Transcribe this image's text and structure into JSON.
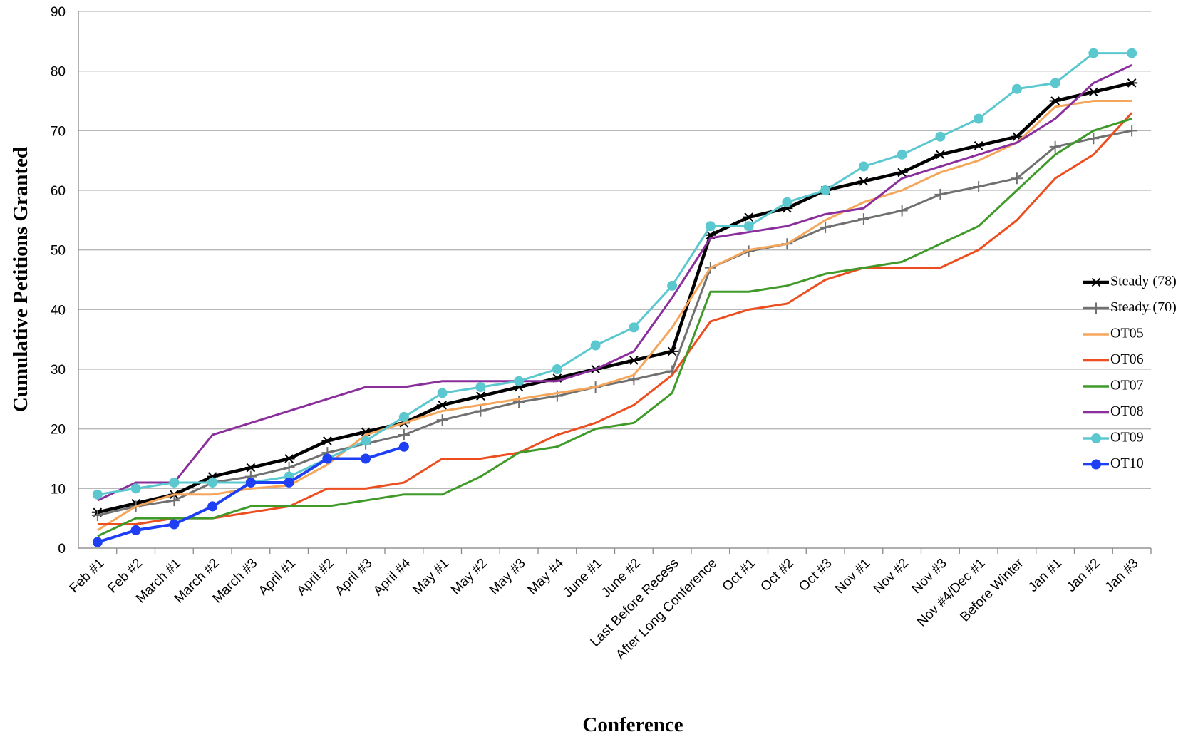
{
  "chart_data": {
    "type": "line",
    "xlabel": "Conference",
    "ylabel": "Cumulative Petitions Granted",
    "categories": [
      "Feb #1",
      "Feb #2",
      "March #1",
      "March #2",
      "March #3",
      "April #1",
      "April #2",
      "April #3",
      "April #4",
      "May #1",
      "May #2",
      "May #3",
      "May #4",
      "June #1",
      "June #2",
      "Last Before Recess",
      "After Long Conference",
      "Oct #1",
      "Oct #2",
      "Oct #3",
      "Nov #1",
      "Nov #2",
      "Nov #3",
      "Nov #4/Dec #1",
      "Before Winter",
      "Jan #1",
      "Jan #2",
      "Jan #3"
    ],
    "ylim": [
      0,
      90
    ],
    "yticks": [
      0,
      10,
      20,
      30,
      40,
      50,
      60,
      70,
      80,
      90
    ],
    "grid": true,
    "legend": "right",
    "series": [
      {
        "name": "Steady (78)",
        "color": "#000000",
        "marker": "star",
        "values": [
          6,
          7.5,
          9,
          12,
          13.5,
          15,
          18,
          19.5,
          21,
          24,
          25.5,
          27,
          28.5,
          30,
          31.5,
          33,
          52.5,
          55.5,
          57,
          60,
          61.5,
          63,
          66,
          67.5,
          69,
          75,
          76.5,
          78
        ]
      },
      {
        "name": "Steady (70)",
        "color": "#707070",
        "marker": "plus",
        "values": [
          5.5,
          7,
          8,
          11,
          12,
          13.5,
          16,
          17.5,
          19,
          21.5,
          23,
          24.5,
          25.5,
          27,
          28.3,
          29.7,
          47,
          49.8,
          51,
          53.8,
          55.2,
          56.6,
          59.3,
          60.6,
          62,
          67.3,
          68.7,
          70
        ]
      },
      {
        "name": "OT05",
        "color": "#f5a65b",
        "values": [
          3,
          7,
          9,
          9,
          10,
          10.5,
          14,
          19,
          21,
          23,
          24,
          25,
          26,
          27,
          29,
          37,
          47,
          50,
          51,
          55,
          58,
          60,
          63,
          65,
          68,
          74,
          75,
          75
        ]
      },
      {
        "name": "OT06",
        "color": "#ec4e20",
        "values": [
          4,
          4,
          5,
          5,
          6,
          7,
          10,
          10,
          11,
          15,
          15,
          16,
          19,
          21,
          24,
          29,
          38,
          40,
          41,
          45,
          47,
          47,
          47,
          50,
          55,
          62,
          66,
          73
        ]
      },
      {
        "name": "OT07",
        "color": "#3f9a2a",
        "values": [
          2,
          5,
          5,
          5,
          7,
          7,
          7,
          8,
          9,
          9,
          12,
          16,
          17,
          20,
          21,
          26,
          43,
          43,
          44,
          46,
          47,
          48,
          51,
          54,
          60,
          66,
          70,
          72
        ]
      },
      {
        "name": "OT08",
        "color": "#8a2f9c",
        "values": [
          8,
          11,
          11,
          19,
          21,
          23,
          25,
          27,
          27,
          28,
          28,
          28,
          28,
          30,
          33,
          42,
          52,
          53,
          54,
          56,
          57,
          62,
          64,
          66,
          68,
          72,
          78,
          81
        ]
      },
      {
        "name": "OT09",
        "color": "#5bc8d0",
        "marker": "circle",
        "values": [
          9,
          10,
          11,
          11,
          11,
          12,
          15,
          18,
          22,
          26,
          27,
          28,
          30,
          34,
          37,
          44,
          54,
          54,
          58,
          60,
          64,
          66,
          69,
          72,
          77,
          78,
          83,
          83
        ]
      },
      {
        "name": "OT10",
        "color": "#1f3ff5",
        "marker": "circle",
        "values": [
          1,
          3,
          4,
          7,
          11,
          11,
          15,
          15,
          17,
          null,
          null,
          null,
          null,
          null,
          null,
          null,
          null,
          null,
          null,
          null,
          null,
          null,
          null,
          null,
          null,
          null,
          null,
          null
        ]
      }
    ]
  }
}
